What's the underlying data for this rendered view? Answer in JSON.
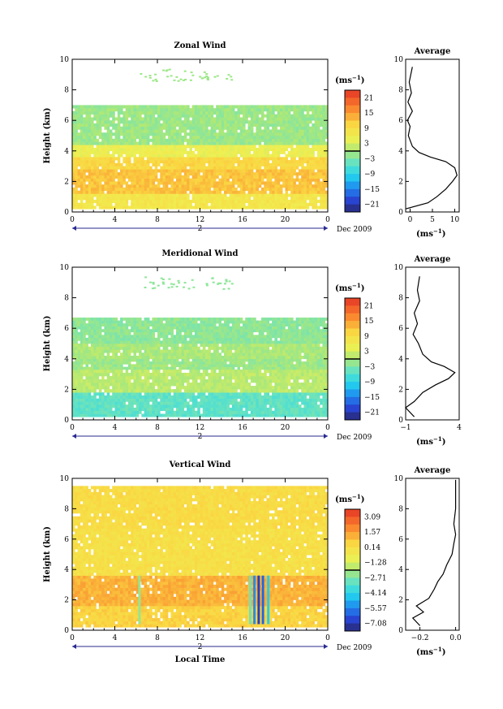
{
  "figure": {
    "date_label": "Dec 2009",
    "day_label": "2",
    "bottom_xlabel": "Local Time",
    "ylabel": "Height (km)",
    "avg_title": "Average",
    "unit_base": "(ms",
    "unit_exp": "−1",
    "unit_close": ")"
  },
  "chart_data": [
    {
      "id": "zonal",
      "type": "heatmap",
      "title": "Zonal Wind",
      "xlabel": "",
      "ylabel": "Height (km)",
      "xlim": [
        0,
        24
      ],
      "xticks": [
        "0",
        "4",
        "8",
        "12",
        "16",
        "20",
        "0"
      ],
      "ylim": [
        0,
        10
      ],
      "yticks": [
        "0",
        "2",
        "4",
        "6",
        "8",
        "10"
      ],
      "colorbar": {
        "unit": "(ms−1)",
        "ticks": [
          "21",
          "15",
          "9",
          "3",
          "−3",
          "−9",
          "−15",
          "−21"
        ],
        "range": [
          -24,
          24
        ]
      },
      "layers": [
        {
          "z0": 0.2,
          "z1": 1.2,
          "value": 7
        },
        {
          "z0": 1.2,
          "z1": 2.8,
          "value": 12
        },
        {
          "z0": 2.8,
          "z1": 3.6,
          "value": 10
        },
        {
          "z0": 3.6,
          "z1": 4.4,
          "value": 5
        },
        {
          "z0": 4.4,
          "z1": 7.0,
          "value": -1
        }
      ],
      "profile": {
        "xlim": [
          -1,
          11
        ],
        "xticks": [
          "0",
          "5",
          "10"
        ],
        "tick_values": [
          0,
          5,
          10
        ],
        "points": [
          [
            -1,
            0.2
          ],
          [
            4,
            0.6
          ],
          [
            6,
            1.0
          ],
          [
            8,
            1.5
          ],
          [
            9.5,
            2.0
          ],
          [
            10.5,
            2.4
          ],
          [
            10.0,
            2.9
          ],
          [
            8,
            3.3
          ],
          [
            4.5,
            3.6
          ],
          [
            2,
            3.9
          ],
          [
            0.5,
            4.3
          ],
          [
            -0.4,
            5.0
          ],
          [
            0,
            5.6
          ],
          [
            -0.6,
            6.0
          ],
          [
            0.5,
            6.6
          ],
          [
            -0.5,
            7.2
          ],
          [
            0.3,
            7.8
          ],
          [
            -0.2,
            8.5
          ],
          [
            0.5,
            9.5
          ]
        ]
      }
    },
    {
      "id": "meridional",
      "type": "heatmap",
      "title": "Meridional Wind",
      "xlabel": "",
      "ylabel": "Height (km)",
      "xlim": [
        0,
        24
      ],
      "xticks": [
        "0",
        "4",
        "8",
        "12",
        "16",
        "20",
        "0"
      ],
      "ylim": [
        0,
        10
      ],
      "yticks": [
        "0",
        "2",
        "4",
        "6",
        "8",
        "10"
      ],
      "colorbar": {
        "unit": "(ms−1)",
        "ticks": [
          "21",
          "15",
          "9",
          "3",
          "−3",
          "−9",
          "−15",
          "−21"
        ],
        "range": [
          -24,
          24
        ]
      },
      "layers": [
        {
          "z0": 0.2,
          "z1": 1.8,
          "value": -5
        },
        {
          "z0": 1.8,
          "z1": 3.3,
          "value": 1
        },
        {
          "z0": 3.3,
          "z1": 4.0,
          "value": -1
        },
        {
          "z0": 4.0,
          "z1": 5.0,
          "value": 0
        },
        {
          "z0": 5.0,
          "z1": 6.7,
          "value": -2
        }
      ],
      "profile": {
        "xlim": [
          -1,
          4
        ],
        "xticks": [
          "−1",
          "4"
        ],
        "tick_values": [
          -1,
          4
        ],
        "points": [
          [
            -0.2,
            0.2
          ],
          [
            -1,
            0.8
          ],
          [
            -0.2,
            1.2
          ],
          [
            0.6,
            1.8
          ],
          [
            1.8,
            2.3
          ],
          [
            3.0,
            2.7
          ],
          [
            3.6,
            3.1
          ],
          [
            2.6,
            3.5
          ],
          [
            1.4,
            3.8
          ],
          [
            0.6,
            4.3
          ],
          [
            0.2,
            5.0
          ],
          [
            -0.3,
            5.6
          ],
          [
            0.1,
            6.3
          ],
          [
            -0.2,
            7.0
          ],
          [
            0.3,
            7.8
          ],
          [
            0.1,
            8.5
          ],
          [
            0.3,
            9.4
          ]
        ]
      }
    },
    {
      "id": "vertical",
      "type": "heatmap",
      "title": "Vertical Wind",
      "xlabel": "Local Time",
      "ylabel": "Height (km)",
      "xlim": [
        0,
        24
      ],
      "xticks": [
        "0",
        "4",
        "8",
        "12",
        "16",
        "20",
        "0"
      ],
      "ylim": [
        0,
        10
      ],
      "yticks": [
        "0",
        "2",
        "4",
        "6",
        "8",
        "10"
      ],
      "colorbar": {
        "unit": "(ms−1)",
        "ticks": [
          "3.09",
          "1.57",
          "0.14",
          "−1.28",
          "−2.71",
          "−4.14",
          "−5.57",
          "−7.08"
        ],
        "range": [
          -7.9,
          3.9
        ]
      },
      "layers": [
        {
          "z0": 0.2,
          "z1": 1.6,
          "value": 0.6
        },
        {
          "z0": 1.6,
          "z1": 3.6,
          "value": 1.3
        },
        {
          "z0": 3.6,
          "z1": 6.7,
          "value": 0.1
        },
        {
          "z0": 6.7,
          "z1": 9.5,
          "value": 0.3
        }
      ],
      "profile": {
        "xlim": [
          -0.28,
          0.02
        ],
        "xticks": [
          "−0.2",
          "0.0"
        ],
        "tick_values": [
          -0.2,
          0.0
        ],
        "points": [
          [
            -0.2,
            0.3
          ],
          [
            -0.24,
            0.8
          ],
          [
            -0.18,
            1.2
          ],
          [
            -0.22,
            1.6
          ],
          [
            -0.15,
            2.1
          ],
          [
            -0.12,
            2.7
          ],
          [
            -0.1,
            3.2
          ],
          [
            -0.07,
            3.7
          ],
          [
            -0.05,
            4.3
          ],
          [
            -0.02,
            5.0
          ],
          [
            -0.01,
            5.7
          ],
          [
            0.0,
            6.3
          ],
          [
            -0.01,
            7.0
          ],
          [
            0.0,
            8.0
          ],
          [
            0.0,
            9.0
          ],
          [
            0.0,
            9.9
          ]
        ]
      }
    }
  ]
}
